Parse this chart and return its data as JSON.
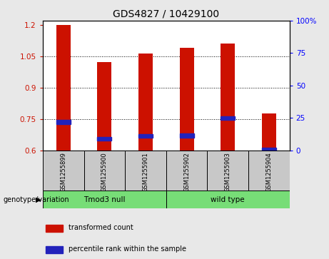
{
  "title": "GDS4827 / 10429100",
  "samples": [
    "GSM1255899",
    "GSM1255900",
    "GSM1255901",
    "GSM1255902",
    "GSM1255903",
    "GSM1255904"
  ],
  "red_values": [
    1.198,
    1.022,
    1.062,
    1.09,
    1.11,
    0.775
  ],
  "blue_values": [
    0.735,
    0.655,
    0.668,
    0.67,
    0.755,
    0.603
  ],
  "baseline": 0.6,
  "ylim": [
    0.6,
    1.22
  ],
  "yticks": [
    0.6,
    0.75,
    0.9,
    1.05,
    1.2
  ],
  "ytick_labels": [
    "0.6",
    "0.75",
    "0.9",
    "1.05",
    "1.2"
  ],
  "y2ticks": [
    0,
    25,
    50,
    75,
    100
  ],
  "y2tick_labels": [
    "0",
    "25",
    "50",
    "75",
    "100%"
  ],
  "group1_label": "Tmod3 null",
  "group2_label": "wild type",
  "group_label": "genotype/variation",
  "green_color": "#77DD77",
  "bar_color": "#CC1100",
  "blue_color": "#2222BB",
  "bar_width": 0.35,
  "bg_color": "#E8E8E8",
  "sample_box_color": "#C8C8C8",
  "plot_bg": "#FFFFFF",
  "legend_red": "transformed count",
  "legend_blue": "percentile rank within the sample",
  "title_fontsize": 10,
  "tick_fontsize": 7.5,
  "label_fontsize": 7.5
}
